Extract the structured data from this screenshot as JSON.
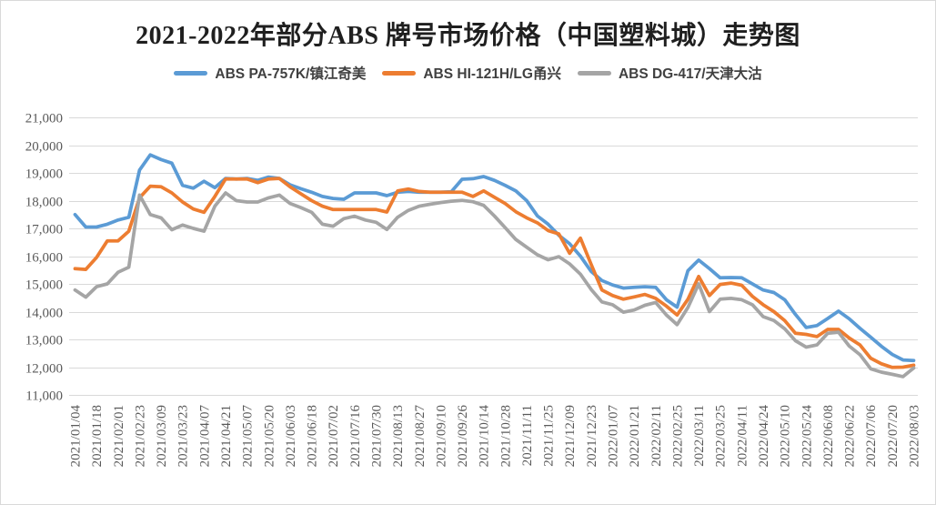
{
  "chart": {
    "title": "2021-2022年部分ABS 牌号市场价格（中国塑料城）走势图"
  },
  "colors": {
    "background": "#FFFFFF",
    "border": "#D9D9D9",
    "grid": "#D9D9D9",
    "title_text": "#1F1F1F",
    "axis_label": "#595959",
    "legend_text": "#404040",
    "series_blue": "#5B9BD5",
    "series_orange": "#ED7D31",
    "series_gray": "#A5A5A5"
  },
  "chart_data": {
    "type": "line",
    "title": "2021-2022年部分ABS 牌号市场价格（中国塑料城）走势图",
    "xlabel": "",
    "ylabel": "",
    "grid": "horizontal",
    "legend_position": "top",
    "y_axis": {
      "min": 11000,
      "max": 21000,
      "step": 1000,
      "tick_format": "#,##0"
    },
    "x_axis": {
      "tick_labels": [
        "2021/01/04",
        "2021/01/18",
        "2021/02/01",
        "2021/02/23",
        "2021/03/09",
        "2021/03/23",
        "2021/04/07",
        "2021/04/21",
        "2021/05/07",
        "2021/05/20",
        "2021/06/03",
        "2021/06/18",
        "2021/07/02",
        "2021/07/16",
        "2021/07/30",
        "2021/08/13",
        "2021/08/27",
        "2021/09/10",
        "2021/09/26",
        "2021/10/14",
        "2021/10/28",
        "2021/11/11",
        "2021/11/25",
        "2021/12/09",
        "2021/12/23",
        "2022/01/07",
        "2022/01/21",
        "2022/02/11",
        "2022/02/25",
        "2022/03/11",
        "2022/03/25",
        "2022/04/11",
        "2022/04/24",
        "2022/05/10",
        "2022/05/24",
        "2022/06/08",
        "2022/06/22",
        "2022/07/06",
        "2022/07/20",
        "2022/08/03"
      ]
    },
    "series": [
      {
        "id": "pa757k",
        "name": "ABS PA-757K/镇江奇美",
        "color": "#5B9BD5",
        "x_start": 0,
        "x_step": 0.5,
        "values": [
          17500,
          17050,
          17050,
          17150,
          17300,
          17400,
          19100,
          19650,
          19480,
          19350,
          18550,
          18450,
          18700,
          18470,
          18800,
          18780,
          18800,
          18730,
          18850,
          18800,
          18570,
          18430,
          18300,
          18150,
          18080,
          18050,
          18280,
          18280,
          18280,
          18180,
          18300,
          18330,
          18300,
          18300,
          18300,
          18320,
          18770,
          18790,
          18870,
          18730,
          18550,
          18350,
          18000,
          17450,
          17150,
          16750,
          16450,
          16000,
          15450,
          15120,
          14960,
          14850,
          14880,
          14900,
          14880,
          14430,
          14160,
          15480,
          15860,
          15550,
          15220,
          15230,
          15220,
          15000,
          14780,
          14690,
          14430,
          13900,
          13430,
          13500,
          13750,
          14020,
          13740,
          13400,
          13080,
          12750,
          12460,
          12260,
          12240
        ]
      },
      {
        "id": "hi121h",
        "name": "ABS HI-121H/LG甬兴",
        "color": "#ED7D31",
        "x_start": 0,
        "x_step": 0.5,
        "values": [
          15550,
          15520,
          15950,
          16550,
          16550,
          16900,
          18100,
          18520,
          18500,
          18280,
          17950,
          17700,
          17580,
          18150,
          18780,
          18780,
          18780,
          18650,
          18780,
          18800,
          18500,
          18250,
          18000,
          17800,
          17680,
          17680,
          17680,
          17680,
          17680,
          17590,
          18350,
          18420,
          18330,
          18300,
          18300,
          18300,
          18300,
          18150,
          18350,
          18120,
          17900,
          17600,
          17380,
          17200,
          16920,
          16800,
          16100,
          16650,
          15700,
          14780,
          14580,
          14450,
          14530,
          14620,
          14480,
          14200,
          13880,
          14450,
          15270,
          14580,
          14980,
          15030,
          14950,
          14550,
          14250,
          14000,
          13680,
          13220,
          13180,
          13100,
          13360,
          13360,
          13050,
          12800,
          12320,
          12120,
          11990,
          12000,
          12070
        ]
      },
      {
        "id": "dg417",
        "name": "ABS DG-417/天津大沽",
        "color": "#A5A5A5",
        "x_start": 0,
        "x_step": 0.5,
        "values": [
          14780,
          14520,
          14900,
          15000,
          15420,
          15600,
          18200,
          17500,
          17380,
          16950,
          17120,
          17000,
          16900,
          17800,
          18280,
          18000,
          17950,
          17950,
          18100,
          18200,
          17900,
          17750,
          17580,
          17150,
          17080,
          17350,
          17440,
          17300,
          17220,
          16960,
          17400,
          17650,
          17800,
          17870,
          17930,
          17980,
          18010,
          17960,
          17830,
          17450,
          17030,
          16600,
          16320,
          16050,
          15870,
          15980,
          15720,
          15350,
          14800,
          14350,
          14250,
          13980,
          14060,
          14230,
          14330,
          13880,
          13530,
          14150,
          15000,
          14000,
          14450,
          14480,
          14430,
          14250,
          13820,
          13680,
          13380,
          12950,
          12720,
          12800,
          13220,
          13260,
          12760,
          12450,
          11940,
          11820,
          11740,
          11660,
          11970
        ]
      }
    ]
  }
}
